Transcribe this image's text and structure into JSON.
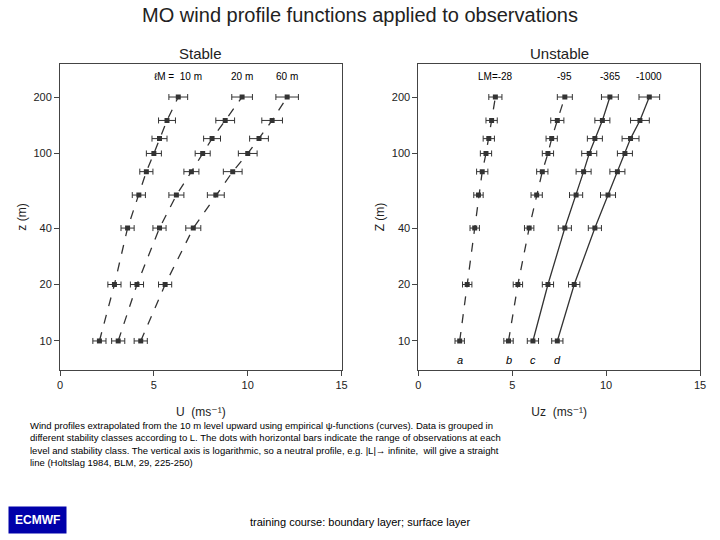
{
  "title": "MO wind profile functions applied to observations",
  "footer": [
    "Wind profiles extrapolated from the 10 m level upward using empirical ψ-functions (curves). Data is grouped in",
    "different stability classes according to L. The dots with horizontal bars indicate the range of observations at each",
    "level and stability class. The vertical axis is logarithmic, so a neutral profile, e.g. |L|→ infinite,  will give a straight",
    "line (Holtslag 1984, BLM, 29, 225-250)"
  ],
  "annotations": [
    "training course: boundary layer; surface layer",
    "ECMWF"
  ],
  "chart_data": [
    {
      "type": "line",
      "title": "Stable",
      "xlabel": "U  (ms⁻¹)",
      "ylabel": "z (m)",
      "log": "y",
      "grid": false,
      "xlim": [
        0,
        15
      ],
      "ylim": [
        7,
        300
      ],
      "xticks": [
        0,
        5,
        10,
        15
      ],
      "yticks": [
        10,
        20,
        40,
        100,
        200
      ],
      "annotations": [
        "ℓM =  10 m",
        "20 m",
        "60 m"
      ],
      "series": [
        {
          "color": "#333333",
          "line_style": "dashed",
          "marker": "square",
          "x": [
            2.1,
            2.9,
            3.6,
            4.2,
            4.6,
            5.0,
            5.3,
            5.7,
            6.3
          ],
          "values": [
            10,
            20,
            40,
            60,
            80,
            100,
            120,
            150,
            200
          ],
          "xerr": [
            0.35,
            0.35,
            0.35,
            0.35,
            0.35,
            0.4,
            0.4,
            0.45,
            0.5
          ]
        },
        {
          "color": "#333333",
          "line_style": "dashed",
          "marker": "square",
          "x": [
            3.1,
            4.1,
            5.3,
            6.2,
            7.0,
            7.6,
            8.1,
            8.8,
            9.7
          ],
          "values": [
            10,
            20,
            40,
            60,
            80,
            100,
            120,
            150,
            200
          ],
          "xerr": [
            0.35,
            0.35,
            0.35,
            0.4,
            0.4,
            0.4,
            0.45,
            0.5,
            0.55
          ]
        },
        {
          "color": "#333333",
          "line_style": "dashed",
          "marker": "square",
          "x": [
            4.3,
            5.6,
            7.1,
            8.3,
            9.2,
            10.0,
            10.6,
            11.3,
            12.1
          ],
          "values": [
            10,
            20,
            40,
            60,
            80,
            100,
            120,
            150,
            200
          ],
          "xerr": [
            0.35,
            0.35,
            0.4,
            0.45,
            0.5,
            0.5,
            0.5,
            0.55,
            0.6
          ]
        }
      ]
    },
    {
      "type": "line",
      "title": "Unstable",
      "xlabel": "Uz  (ms⁻¹)",
      "ylabel": "Z (m)",
      "log": "y",
      "grid": false,
      "xlim": [
        0,
        15
      ],
      "ylim": [
        7,
        300
      ],
      "xticks": [
        0,
        5,
        10,
        15
      ],
      "yticks": [
        10,
        20,
        40,
        100,
        200
      ],
      "annotations": [
        "LM=-28",
        "-95",
        "-365",
        "-1000"
      ],
      "series": [
        {
          "color": "#333333",
          "line_style": "dashed",
          "marker": "square",
          "label": "a",
          "x": [
            2.2,
            2.6,
            3.0,
            3.2,
            3.4,
            3.6,
            3.75,
            3.9,
            4.1
          ],
          "values": [
            10,
            20,
            40,
            60,
            80,
            100,
            120,
            150,
            200
          ],
          "xerr": [
            0.25,
            0.25,
            0.25,
            0.25,
            0.3,
            0.3,
            0.3,
            0.3,
            0.35
          ]
        },
        {
          "color": "#333333",
          "line_style": "dashed",
          "marker": "square",
          "label": "b",
          "x": [
            4.8,
            5.3,
            5.9,
            6.3,
            6.6,
            6.9,
            7.1,
            7.4,
            7.8
          ],
          "values": [
            10,
            20,
            40,
            60,
            80,
            100,
            120,
            150,
            200
          ],
          "xerr": [
            0.25,
            0.25,
            0.25,
            0.3,
            0.3,
            0.3,
            0.3,
            0.35,
            0.4
          ]
        },
        {
          "color": "#333333",
          "line_style": "solid",
          "marker": "square",
          "label": "c",
          "x": [
            6.1,
            6.9,
            7.8,
            8.4,
            8.8,
            9.1,
            9.4,
            9.8,
            10.2
          ],
          "values": [
            10,
            20,
            40,
            60,
            80,
            100,
            120,
            150,
            200
          ],
          "xerr": [
            0.3,
            0.3,
            0.35,
            0.35,
            0.4,
            0.4,
            0.4,
            0.4,
            0.45
          ]
        },
        {
          "color": "#333333",
          "line_style": "solid",
          "marker": "square",
          "label": "d",
          "x": [
            7.4,
            8.3,
            9.4,
            10.1,
            10.6,
            11.0,
            11.3,
            11.8,
            12.3
          ],
          "values": [
            10,
            20,
            40,
            60,
            80,
            100,
            120,
            150,
            200
          ],
          "xerr": [
            0.3,
            0.3,
            0.35,
            0.4,
            0.4,
            0.4,
            0.45,
            0.5,
            0.55
          ]
        }
      ]
    }
  ]
}
